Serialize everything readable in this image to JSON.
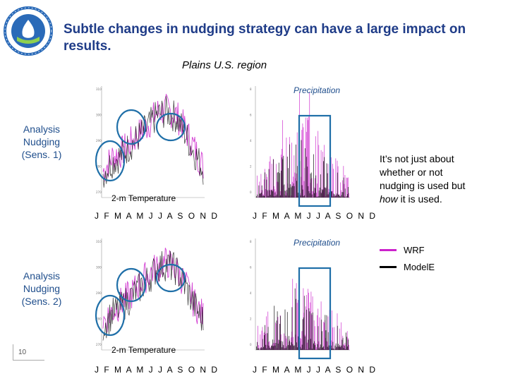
{
  "slide": {
    "title": "Subtle changes in nudging strategy can have a large impact on results.",
    "subtitle": "Plains U.S. region",
    "number": "10"
  },
  "labels": {
    "sens1": "Analysis Nudging (Sens. 1)",
    "sens2": "Analysis Nudging (Sens. 2)",
    "temperature": "2-m Temperature",
    "precipitation": "Precipitation"
  },
  "note": {
    "prefix": "It’s not just about whether or not nudging is used but ",
    "emphasis": "how",
    "suffix": " it is used."
  },
  "legend": [
    {
      "label": "WRF",
      "color": "#cc22cc"
    },
    {
      "label": "ModelE",
      "color": "#000000"
    }
  ],
  "colors": {
    "title": "#1f3c88",
    "annotation": "#1f4e8c",
    "wrf": "#cc22cc",
    "modele": "#000000"
  },
  "chart_data": [
    {
      "type": "line",
      "panel": "sens1-temperature",
      "title": "2-m Temperature",
      "x_tick_labels": "J F M A M J J A S O N D",
      "y_ticks": [
        "310",
        "300",
        "290",
        "280",
        "270"
      ],
      "ylim": [
        265,
        312
      ],
      "series": [
        {
          "name": "WRF",
          "values": [
            276,
            282,
            284,
            288,
            292,
            296,
            301,
            302,
            300,
            294,
            286,
            278
          ]
        },
        {
          "name": "ModelE",
          "values": [
            275,
            280,
            283,
            287,
            291,
            295,
            300,
            301,
            299,
            292,
            284,
            277
          ]
        }
      ]
    },
    {
      "type": "bar",
      "panel": "sens1-precipitation",
      "title": "Precipitation",
      "x_tick_labels": "J F M A M J J A S O N D",
      "y_ticks": [
        "8",
        "6",
        "4",
        "2",
        "0"
      ],
      "ylim": [
        0,
        9
      ],
      "series": [
        {
          "name": "WRF",
          "values": [
            1.5,
            2.0,
            3.5,
            4.5,
            5.0,
            6.5,
            7.5,
            5.0,
            3.5,
            2.5,
            2.0,
            1.5
          ]
        },
        {
          "name": "ModelE",
          "values": [
            1.0,
            1.5,
            2.5,
            3.0,
            3.5,
            4.0,
            3.0,
            2.5,
            2.5,
            2.0,
            1.5,
            1.0
          ]
        }
      ]
    },
    {
      "type": "line",
      "panel": "sens2-temperature",
      "title": "2-m Temperature",
      "x_tick_labels": "J F M A M J J A S O N D",
      "y_ticks": [
        "310",
        "300",
        "290",
        "280",
        "270"
      ],
      "ylim": [
        265,
        312
      ],
      "series": [
        {
          "name": "WRF",
          "values": [
            277,
            281,
            285,
            288,
            293,
            297,
            300,
            302,
            299,
            293,
            285,
            279
          ]
        },
        {
          "name": "ModelE",
          "values": [
            275,
            280,
            283,
            287,
            291,
            295,
            300,
            301,
            299,
            292,
            284,
            277
          ]
        }
      ]
    },
    {
      "type": "bar",
      "panel": "sens2-precipitation",
      "title": "Precipitation",
      "x_tick_labels": "J F M A M J J A S O N D",
      "y_ticks": [
        "8",
        "6",
        "4",
        "2",
        "0"
      ],
      "ylim": [
        0,
        9
      ],
      "series": [
        {
          "name": "WRF",
          "values": [
            1.5,
            2.0,
            3.0,
            4.0,
            4.5,
            5.0,
            4.0,
            3.0,
            3.0,
            2.5,
            2.0,
            1.5
          ]
        },
        {
          "name": "ModelE",
          "values": [
            1.0,
            1.5,
            2.5,
            3.0,
            3.5,
            4.0,
            3.0,
            2.5,
            2.5,
            2.0,
            1.5,
            1.0
          ]
        }
      ]
    }
  ]
}
